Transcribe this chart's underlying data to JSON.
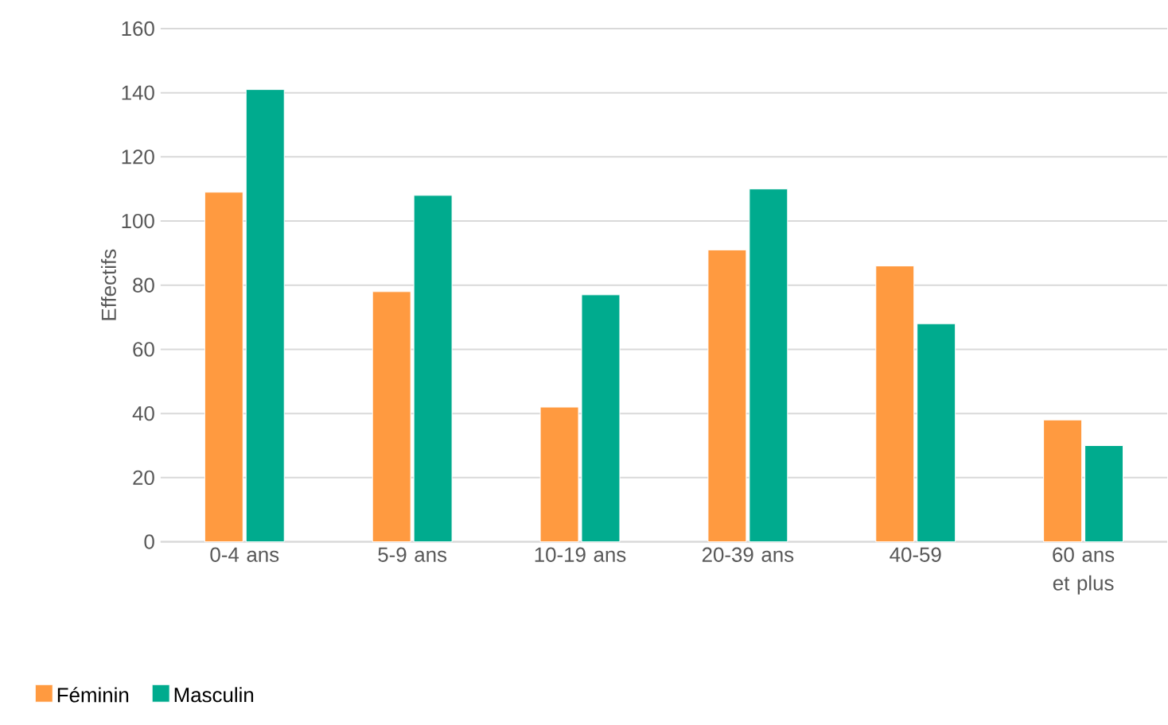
{
  "chart_data": {
    "type": "bar",
    "ylabel": "Effectifs",
    "categories": [
      "0-4 ans",
      "5-9 ans",
      "10-19 ans",
      "20-39 ans",
      "40-59",
      "60 ans et plus"
    ],
    "series": [
      {
        "name": "Féminin",
        "color": "#ff9a40",
        "values": [
          109,
          78,
          42,
          91,
          86,
          38
        ]
      },
      {
        "name": "Masculin",
        "color": "#00ab8e",
        "values": [
          141,
          108,
          77,
          110,
          68,
          30
        ]
      }
    ],
    "ylim": [
      0,
      160
    ],
    "yticks": [
      0,
      20,
      40,
      60,
      80,
      100,
      120,
      140,
      160
    ],
    "grid": "y",
    "legend": "bottom left"
  }
}
